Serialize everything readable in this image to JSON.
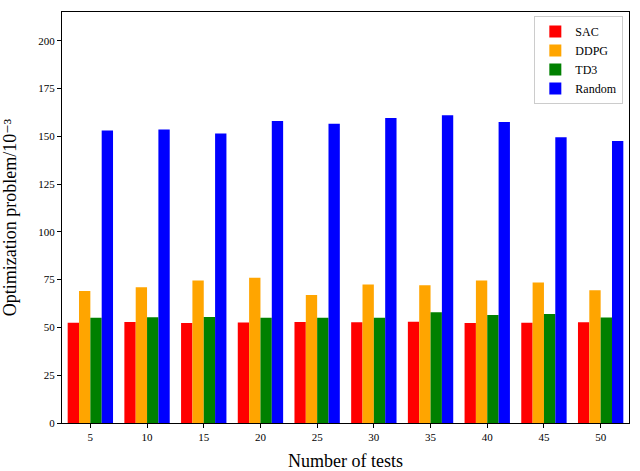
{
  "chart_data": {
    "type": "bar",
    "x_label": "Number of tests",
    "y_label": "Optimization problem/10⁻³",
    "categories": [
      "5",
      "10",
      "15",
      "20",
      "25",
      "30",
      "35",
      "40",
      "45",
      "50"
    ],
    "series": [
      {
        "name": "SAC",
        "color": "#ff0000",
        "values": [
          52.5,
          52.8,
          52.3,
          52.6,
          52.8,
          52.7,
          52.9,
          52.3,
          52.4,
          52.7
        ]
      },
      {
        "name": "DDPG",
        "color": "#ffa500",
        "values": [
          69,
          71,
          74.5,
          76,
          67,
          72.5,
          72,
          74.5,
          73.5,
          69.5
        ]
      },
      {
        "name": "TD3",
        "color": "#008000",
        "values": [
          55,
          55.3,
          55.5,
          55,
          55,
          55,
          58,
          56.5,
          57,
          55.2
        ]
      },
      {
        "name": "Random",
        "color": "#0000ff",
        "values": [
          153,
          153.5,
          151.5,
          158,
          156.5,
          159.5,
          161,
          157.5,
          149.5,
          147.5
        ]
      }
    ],
    "ylim": [
      0,
      215
    ],
    "yticks": [
      0,
      25,
      50,
      75,
      100,
      125,
      150,
      175,
      200
    ],
    "grid": false,
    "legend": "upper right"
  }
}
